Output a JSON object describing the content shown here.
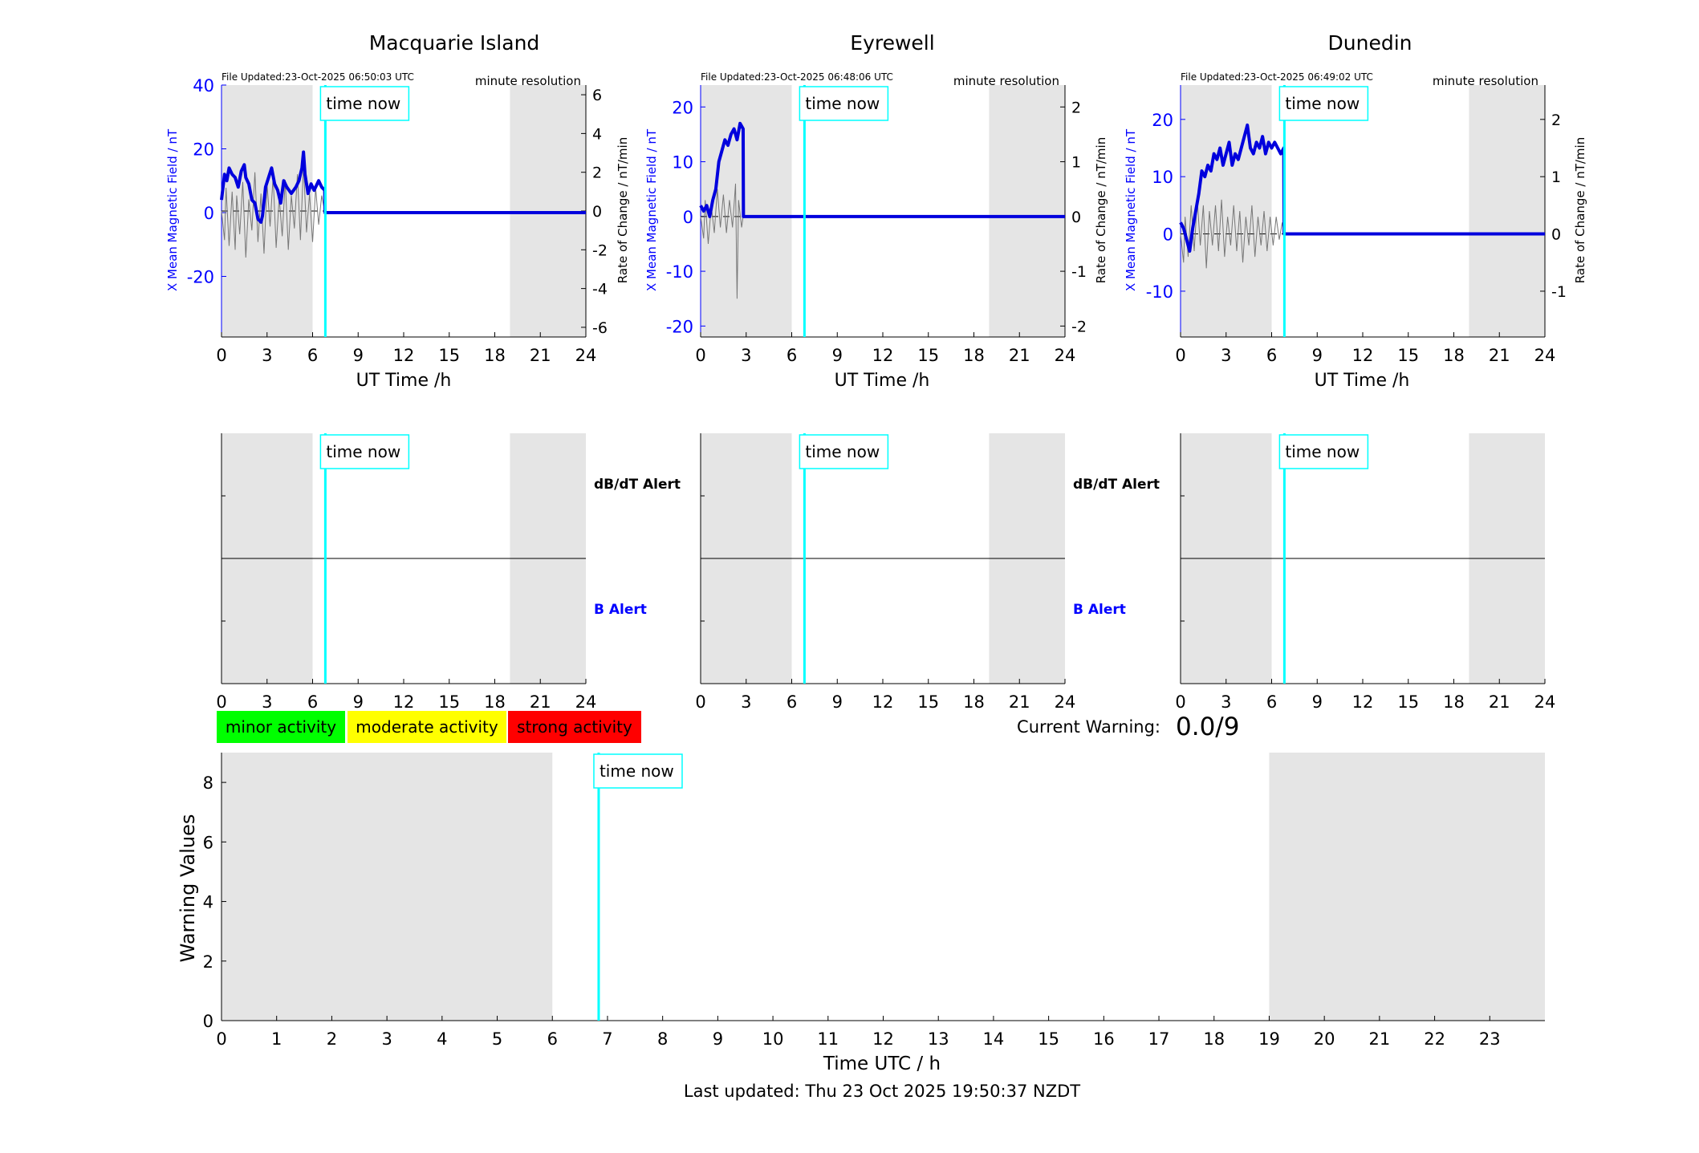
{
  "panels": [
    {
      "title": "Macquarie Island",
      "file_updated": "File Updated:23-Oct-2025 06:50:03 UTC",
      "resolution": "minute resolution",
      "ylabel_left": "X Mean Magnetic Field / nT",
      "ylabel_right": "Rate of Change / nT/min",
      "xlabel": "UT Time /h",
      "xticks": [
        0,
        3,
        6,
        9,
        12,
        15,
        18,
        21,
        24
      ],
      "left_ylim": [
        -39,
        40
      ],
      "left_yticks": [
        -20,
        0,
        20,
        40
      ],
      "right_ylim": [
        -6.5,
        6.5
      ],
      "right_yticks": [
        -6,
        -4,
        -2,
        0,
        2,
        4,
        6
      ],
      "field_series": [
        [
          0,
          4
        ],
        [
          0.1,
          8
        ],
        [
          0.2,
          12
        ],
        [
          0.35,
          10
        ],
        [
          0.5,
          14
        ],
        [
          0.7,
          12
        ],
        [
          0.9,
          11
        ],
        [
          1.1,
          8
        ],
        [
          1.3,
          13
        ],
        [
          1.5,
          15
        ],
        [
          1.6,
          11
        ],
        [
          1.8,
          9
        ],
        [
          2.0,
          4
        ],
        [
          2.2,
          3
        ],
        [
          2.4,
          -2
        ],
        [
          2.6,
          -3
        ],
        [
          2.7,
          -1
        ],
        [
          2.9,
          8
        ],
        [
          3.1,
          11
        ],
        [
          3.3,
          14
        ],
        [
          3.5,
          9
        ],
        [
          3.7,
          7
        ],
        [
          3.9,
          3
        ],
        [
          4.1,
          10
        ],
        [
          4.3,
          8
        ],
        [
          4.6,
          6
        ],
        [
          4.9,
          8
        ],
        [
          5.1,
          10
        ],
        [
          5.3,
          14
        ],
        [
          5.4,
          19
        ],
        [
          5.5,
          12
        ],
        [
          5.7,
          6
        ],
        [
          5.9,
          9
        ],
        [
          6.1,
          7
        ],
        [
          6.4,
          10
        ],
        [
          6.6,
          8
        ],
        [
          6.8,
          7
        ],
        [
          6.82,
          0
        ],
        [
          24,
          0
        ]
      ],
      "rate_series": [
        [
          0,
          0
        ],
        [
          0.2,
          -1.5
        ],
        [
          0.3,
          1.2
        ],
        [
          0.5,
          -1.8
        ],
        [
          0.7,
          1.0
        ],
        [
          0.9,
          -2.0
        ],
        [
          1.0,
          0.8
        ],
        [
          1.2,
          -1.2
        ],
        [
          1.4,
          1.5
        ],
        [
          1.6,
          -2.4
        ],
        [
          1.8,
          0.6
        ],
        [
          2.0,
          -1.0
        ],
        [
          2.2,
          2.0
        ],
        [
          2.4,
          -1.6
        ],
        [
          2.6,
          0.9
        ],
        [
          2.8,
          -2.2
        ],
        [
          3.0,
          1.4
        ],
        [
          3.2,
          -0.8
        ],
        [
          3.4,
          1.8
        ],
        [
          3.6,
          -1.9
        ],
        [
          3.8,
          0.7
        ],
        [
          4.0,
          -1.3
        ],
        [
          4.2,
          1.6
        ],
        [
          4.4,
          -2.0
        ],
        [
          4.6,
          0.8
        ],
        [
          4.8,
          -0.9
        ],
        [
          5.0,
          1.9
        ],
        [
          5.2,
          -1.5
        ],
        [
          5.4,
          2.4
        ],
        [
          5.6,
          -1.1
        ],
        [
          5.8,
          0.9
        ],
        [
          6.0,
          -1.6
        ],
        [
          6.2,
          1.2
        ],
        [
          6.4,
          -0.7
        ],
        [
          6.6,
          0.8
        ],
        [
          6.8,
          0
        ]
      ],
      "shade_ranges": [
        [
          0,
          6
        ],
        [
          19,
          24
        ]
      ],
      "time_now_h": 6.84,
      "time_now_label": "time now"
    },
    {
      "title": "Eyrewell",
      "file_updated": "File Updated:23-Oct-2025 06:48:06 UTC",
      "resolution": "minute resolution",
      "ylabel_left": "X Mean Magnetic Field / nT",
      "ylabel_right": "Rate of Change / nT/min",
      "xlabel": "UT Time /h",
      "xticks": [
        0,
        3,
        6,
        9,
        12,
        15,
        18,
        21,
        24
      ],
      "left_ylim": [
        -22,
        24
      ],
      "left_yticks": [
        -20,
        -10,
        0,
        10,
        20
      ],
      "right_ylim": [
        -2.2,
        2.4
      ],
      "right_yticks": [
        -2,
        -1,
        0,
        1,
        2
      ],
      "field_series": [
        [
          0,
          2
        ],
        [
          0.2,
          1
        ],
        [
          0.4,
          2
        ],
        [
          0.6,
          0
        ],
        [
          0.8,
          3
        ],
        [
          1.0,
          5
        ],
        [
          1.2,
          10
        ],
        [
          1.4,
          12
        ],
        [
          1.6,
          14
        ],
        [
          1.8,
          13
        ],
        [
          2.0,
          15
        ],
        [
          2.2,
          16
        ],
        [
          2.4,
          14
        ],
        [
          2.6,
          17
        ],
        [
          2.8,
          16
        ],
        [
          2.82,
          0
        ],
        [
          24,
          0
        ]
      ],
      "rate_series": [
        [
          0,
          0
        ],
        [
          0.2,
          -0.4
        ],
        [
          0.3,
          0.3
        ],
        [
          0.5,
          -0.5
        ],
        [
          0.7,
          0.2
        ],
        [
          0.9,
          -0.3
        ],
        [
          1.1,
          0.5
        ],
        [
          1.3,
          -0.2
        ],
        [
          1.5,
          0.4
        ],
        [
          1.7,
          -0.3
        ],
        [
          1.9,
          0.3
        ],
        [
          2.1,
          -0.2
        ],
        [
          2.3,
          0.6
        ],
        [
          2.4,
          -1.5
        ],
        [
          2.5,
          0.3
        ],
        [
          2.7,
          -0.2
        ],
        [
          2.8,
          0
        ]
      ],
      "shade_ranges": [
        [
          0,
          6
        ],
        [
          19,
          24
        ]
      ],
      "time_now_h": 6.84,
      "time_now_label": "time now"
    },
    {
      "title": "Dunedin",
      "file_updated": "File Updated:23-Oct-2025 06:49:02 UTC",
      "resolution": "minute resolution",
      "ylabel_left": "X Mean Magnetic Field / nT",
      "ylabel_right": "Rate of Change / nT/min",
      "xlabel": "UT Time /h",
      "xticks": [
        0,
        3,
        6,
        9,
        12,
        15,
        18,
        21,
        24
      ],
      "left_ylim": [
        -18,
        26
      ],
      "left_yticks": [
        -10,
        0,
        10,
        20
      ],
      "right_ylim": [
        -1.8,
        2.6
      ],
      "right_yticks": [
        -1,
        0,
        1,
        2
      ],
      "field_series": [
        [
          0,
          2
        ],
        [
          0.2,
          1
        ],
        [
          0.4,
          -1
        ],
        [
          0.6,
          -3
        ],
        [
          0.8,
          1
        ],
        [
          1.0,
          4
        ],
        [
          1.2,
          7
        ],
        [
          1.4,
          11
        ],
        [
          1.6,
          10
        ],
        [
          1.8,
          12
        ],
        [
          2.0,
          11
        ],
        [
          2.2,
          14
        ],
        [
          2.4,
          13
        ],
        [
          2.6,
          15
        ],
        [
          2.8,
          12
        ],
        [
          3.0,
          14
        ],
        [
          3.2,
          16
        ],
        [
          3.4,
          12
        ],
        [
          3.6,
          14
        ],
        [
          3.8,
          13
        ],
        [
          4.0,
          15
        ],
        [
          4.2,
          17
        ],
        [
          4.4,
          19
        ],
        [
          4.6,
          15
        ],
        [
          4.8,
          14
        ],
        [
          5.0,
          16
        ],
        [
          5.2,
          15
        ],
        [
          5.4,
          17
        ],
        [
          5.6,
          14
        ],
        [
          5.8,
          16
        ],
        [
          6.0,
          15
        ],
        [
          6.2,
          16
        ],
        [
          6.4,
          15
        ],
        [
          6.6,
          14
        ],
        [
          6.8,
          15
        ],
        [
          6.82,
          0
        ],
        [
          24,
          0
        ]
      ],
      "rate_series": [
        [
          0,
          0
        ],
        [
          0.2,
          -0.5
        ],
        [
          0.3,
          0.3
        ],
        [
          0.5,
          -0.4
        ],
        [
          0.7,
          0.5
        ],
        [
          0.9,
          -0.3
        ],
        [
          1.1,
          0.6
        ],
        [
          1.3,
          -0.2
        ],
        [
          1.5,
          0.5
        ],
        [
          1.7,
          -0.6
        ],
        [
          1.9,
          0.4
        ],
        [
          2.1,
          -0.2
        ],
        [
          2.3,
          0.5
        ],
        [
          2.5,
          -0.3
        ],
        [
          2.7,
          0.6
        ],
        [
          2.9,
          -0.4
        ],
        [
          3.1,
          0.3
        ],
        [
          3.3,
          -0.2
        ],
        [
          3.5,
          0.5
        ],
        [
          3.7,
          -0.3
        ],
        [
          3.9,
          0.4
        ],
        [
          4.1,
          -0.5
        ],
        [
          4.3,
          0.3
        ],
        [
          4.5,
          -0.2
        ],
        [
          4.7,
          0.5
        ],
        [
          4.9,
          -0.4
        ],
        [
          5.1,
          0.3
        ],
        [
          5.3,
          -0.2
        ],
        [
          5.5,
          0.4
        ],
        [
          5.7,
          -0.3
        ],
        [
          5.9,
          0.3
        ],
        [
          6.1,
          -0.2
        ],
        [
          6.3,
          0.3
        ],
        [
          6.5,
          -0.1
        ],
        [
          6.7,
          0.2
        ],
        [
          6.8,
          0
        ]
      ],
      "shade_ranges": [
        [
          0,
          6
        ],
        [
          19,
          24
        ]
      ],
      "time_now_h": 6.84,
      "time_now_label": "time now"
    }
  ],
  "alerts": {
    "dbdt_label": "dB/dT Alert",
    "b_label": "B Alert",
    "xticks": [
      0,
      3,
      6,
      9,
      12,
      15,
      18,
      21,
      24
    ],
    "time_now_label": "time now"
  },
  "legend": {
    "minor": "minor activity",
    "moderate": "moderate activity",
    "strong": "strong activity",
    "minor_color": "#00ff00",
    "moderate_color": "#ffff00",
    "strong_color": "#ff0000"
  },
  "current_warning": {
    "label": "Current Warning:",
    "value": "0.0/9"
  },
  "warning_chart": {
    "ylabel": "Warning Values",
    "xlabel": "Time UTC / h",
    "ylim": [
      0,
      9
    ],
    "yticks": [
      0,
      2,
      4,
      6,
      8
    ],
    "xticks": [
      0,
      1,
      2,
      3,
      4,
      5,
      6,
      7,
      8,
      9,
      10,
      11,
      12,
      13,
      14,
      15,
      16,
      17,
      18,
      19,
      20,
      21,
      22,
      23
    ],
    "xlim": [
      0,
      24
    ],
    "shade_ranges": [
      [
        0,
        6
      ],
      [
        19,
        24
      ]
    ],
    "time_now_h": 6.84,
    "time_now_label": "time now"
  },
  "footer": "Last updated: Thu 23 Oct 2025 19:50:37 NZDT",
  "chart_data": [
    {
      "type": "line",
      "title": "Macquarie Island",
      "xlabel": "UT Time /h",
      "ylabel": "X Mean Magnetic Field / nT",
      "xlim": [
        0,
        24
      ],
      "ylim": [
        -39,
        40
      ],
      "series": [
        {
          "name": "X Mean Magnetic Field / nT",
          "x": [
            0,
            0.5,
            1,
            1.5,
            2,
            2.5,
            3,
            3.5,
            4,
            4.5,
            5,
            5.4,
            6,
            6.5,
            6.8,
            7,
            24
          ],
          "values": [
            4,
            14,
            10,
            15,
            4,
            -3,
            11,
            9,
            5,
            7,
            9,
            19,
            7,
            10,
            7,
            0,
            0
          ]
        }
      ]
    },
    {
      "type": "line",
      "title": "Eyrewell",
      "xlabel": "UT Time /h",
      "ylabel": "X Mean Magnetic Field / nT",
      "xlim": [
        0,
        24
      ],
      "ylim": [
        -22,
        24
      ],
      "series": [
        {
          "name": "X Mean Magnetic Field / nT",
          "x": [
            0,
            0.5,
            1,
            1.5,
            2,
            2.5,
            2.8,
            3,
            24
          ],
          "values": [
            2,
            1,
            5,
            13,
            15,
            15,
            16,
            0,
            0
          ]
        }
      ]
    },
    {
      "type": "line",
      "title": "Dunedin",
      "xlabel": "UT Time /h",
      "ylabel": "X Mean Magnetic Field / nT",
      "xlim": [
        0,
        24
      ],
      "ylim": [
        -18,
        26
      ],
      "series": [
        {
          "name": "X Mean Magnetic Field / nT",
          "x": [
            0,
            0.6,
            1,
            1.5,
            2,
            3,
            4,
            4.4,
            5,
            6,
            6.8,
            7,
            24
          ],
          "values": [
            2,
            -3,
            4,
            10,
            11,
            14,
            15,
            19,
            16,
            15,
            15,
            0,
            0
          ]
        }
      ]
    },
    {
      "type": "line",
      "xlabel": "Time UTC / h",
      "ylabel": "Warning Values",
      "xlim": [
        0,
        24
      ],
      "ylim": [
        0,
        9
      ],
      "series": []
    }
  ]
}
